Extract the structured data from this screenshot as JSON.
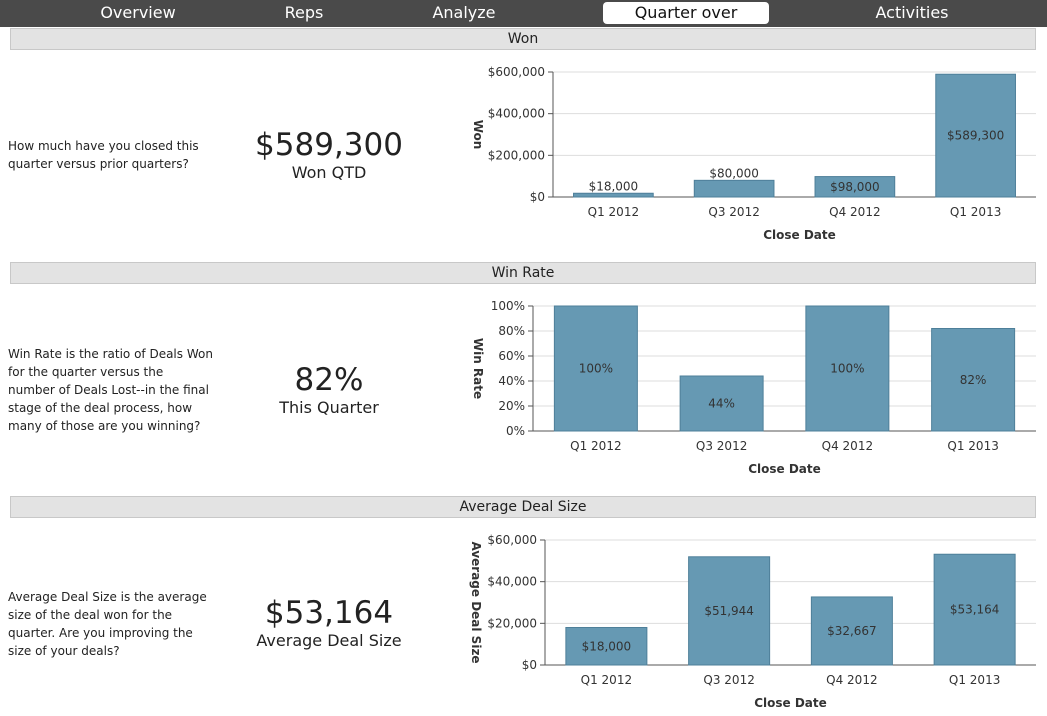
{
  "nav": {
    "tabs": [
      {
        "label": "Overview"
      },
      {
        "label": "Reps"
      },
      {
        "label": "Analyze"
      },
      {
        "label": "Quarter over Quarter"
      },
      {
        "label": "Activities"
      }
    ],
    "active_index": 3
  },
  "sections": [
    {
      "header": "Won",
      "description": "How much have you closed this quarter versus prior quarters?",
      "kpi_value": "$589,300",
      "kpi_label": "Won QTD"
    },
    {
      "header": "Win Rate",
      "description": "Win Rate is the ratio of Deals Won for the quarter versus the number of Deals Lost--in the final stage of the deal process, how many of those are you winning?",
      "kpi_value": "82%",
      "kpi_label": "This Quarter"
    },
    {
      "header": "Average Deal Size",
      "description": "Average Deal Size is the average size of the deal won for the quarter. Are you improving the size of your deals?",
      "kpi_value": "$53,164",
      "kpi_label": "Average Deal Size"
    }
  ],
  "colors": {
    "bar": "#6699b3",
    "bar_border": "#4e7f99",
    "nav_bg": "#4a4a4a",
    "header_bg": "#e3e3e3",
    "grid": "#dddddd"
  },
  "chart_data": [
    {
      "type": "bar",
      "categories": [
        "Q1 2012",
        "Q3 2012",
        "Q4 2012",
        "Q1 2013"
      ],
      "values": [
        18000,
        80000,
        98000,
        589300
      ],
      "data_labels": [
        "$18,000",
        "$80,000",
        "$98,000",
        "$589,300"
      ],
      "xlabel": "Close Date",
      "ylabel": "Won",
      "ylim": [
        0,
        600000
      ],
      "yticks": [
        0,
        200000,
        400000,
        600000
      ],
      "ytick_labels": [
        "$0",
        "$200,000",
        "$400,000",
        "$600,000"
      ],
      "grid": true
    },
    {
      "type": "bar",
      "categories": [
        "Q1 2012",
        "Q3 2012",
        "Q4 2012",
        "Q1 2013"
      ],
      "values": [
        100,
        44,
        100,
        82
      ],
      "data_labels": [
        "100%",
        "44%",
        "100%",
        "82%"
      ],
      "xlabel": "Close Date",
      "ylabel": "Win Rate",
      "ylim": [
        0,
        100
      ],
      "yticks": [
        0,
        20,
        40,
        60,
        80,
        100
      ],
      "ytick_labels": [
        "0%",
        "20%",
        "40%",
        "60%",
        "80%",
        "100%"
      ],
      "grid": true
    },
    {
      "type": "bar",
      "categories": [
        "Q1 2012",
        "Q3 2012",
        "Q4 2012",
        "Q1 2013"
      ],
      "values": [
        18000,
        51944,
        32667,
        53164
      ],
      "data_labels": [
        "$18,000",
        "$51,944",
        "$32,667",
        "$53,164"
      ],
      "xlabel": "Close Date",
      "ylabel": "Average Deal Size",
      "ylim": [
        0,
        60000
      ],
      "yticks": [
        0,
        20000,
        40000,
        60000
      ],
      "ytick_labels": [
        "$0",
        "$20,000",
        "$40,000",
        "$60,000"
      ],
      "grid": true
    }
  ]
}
